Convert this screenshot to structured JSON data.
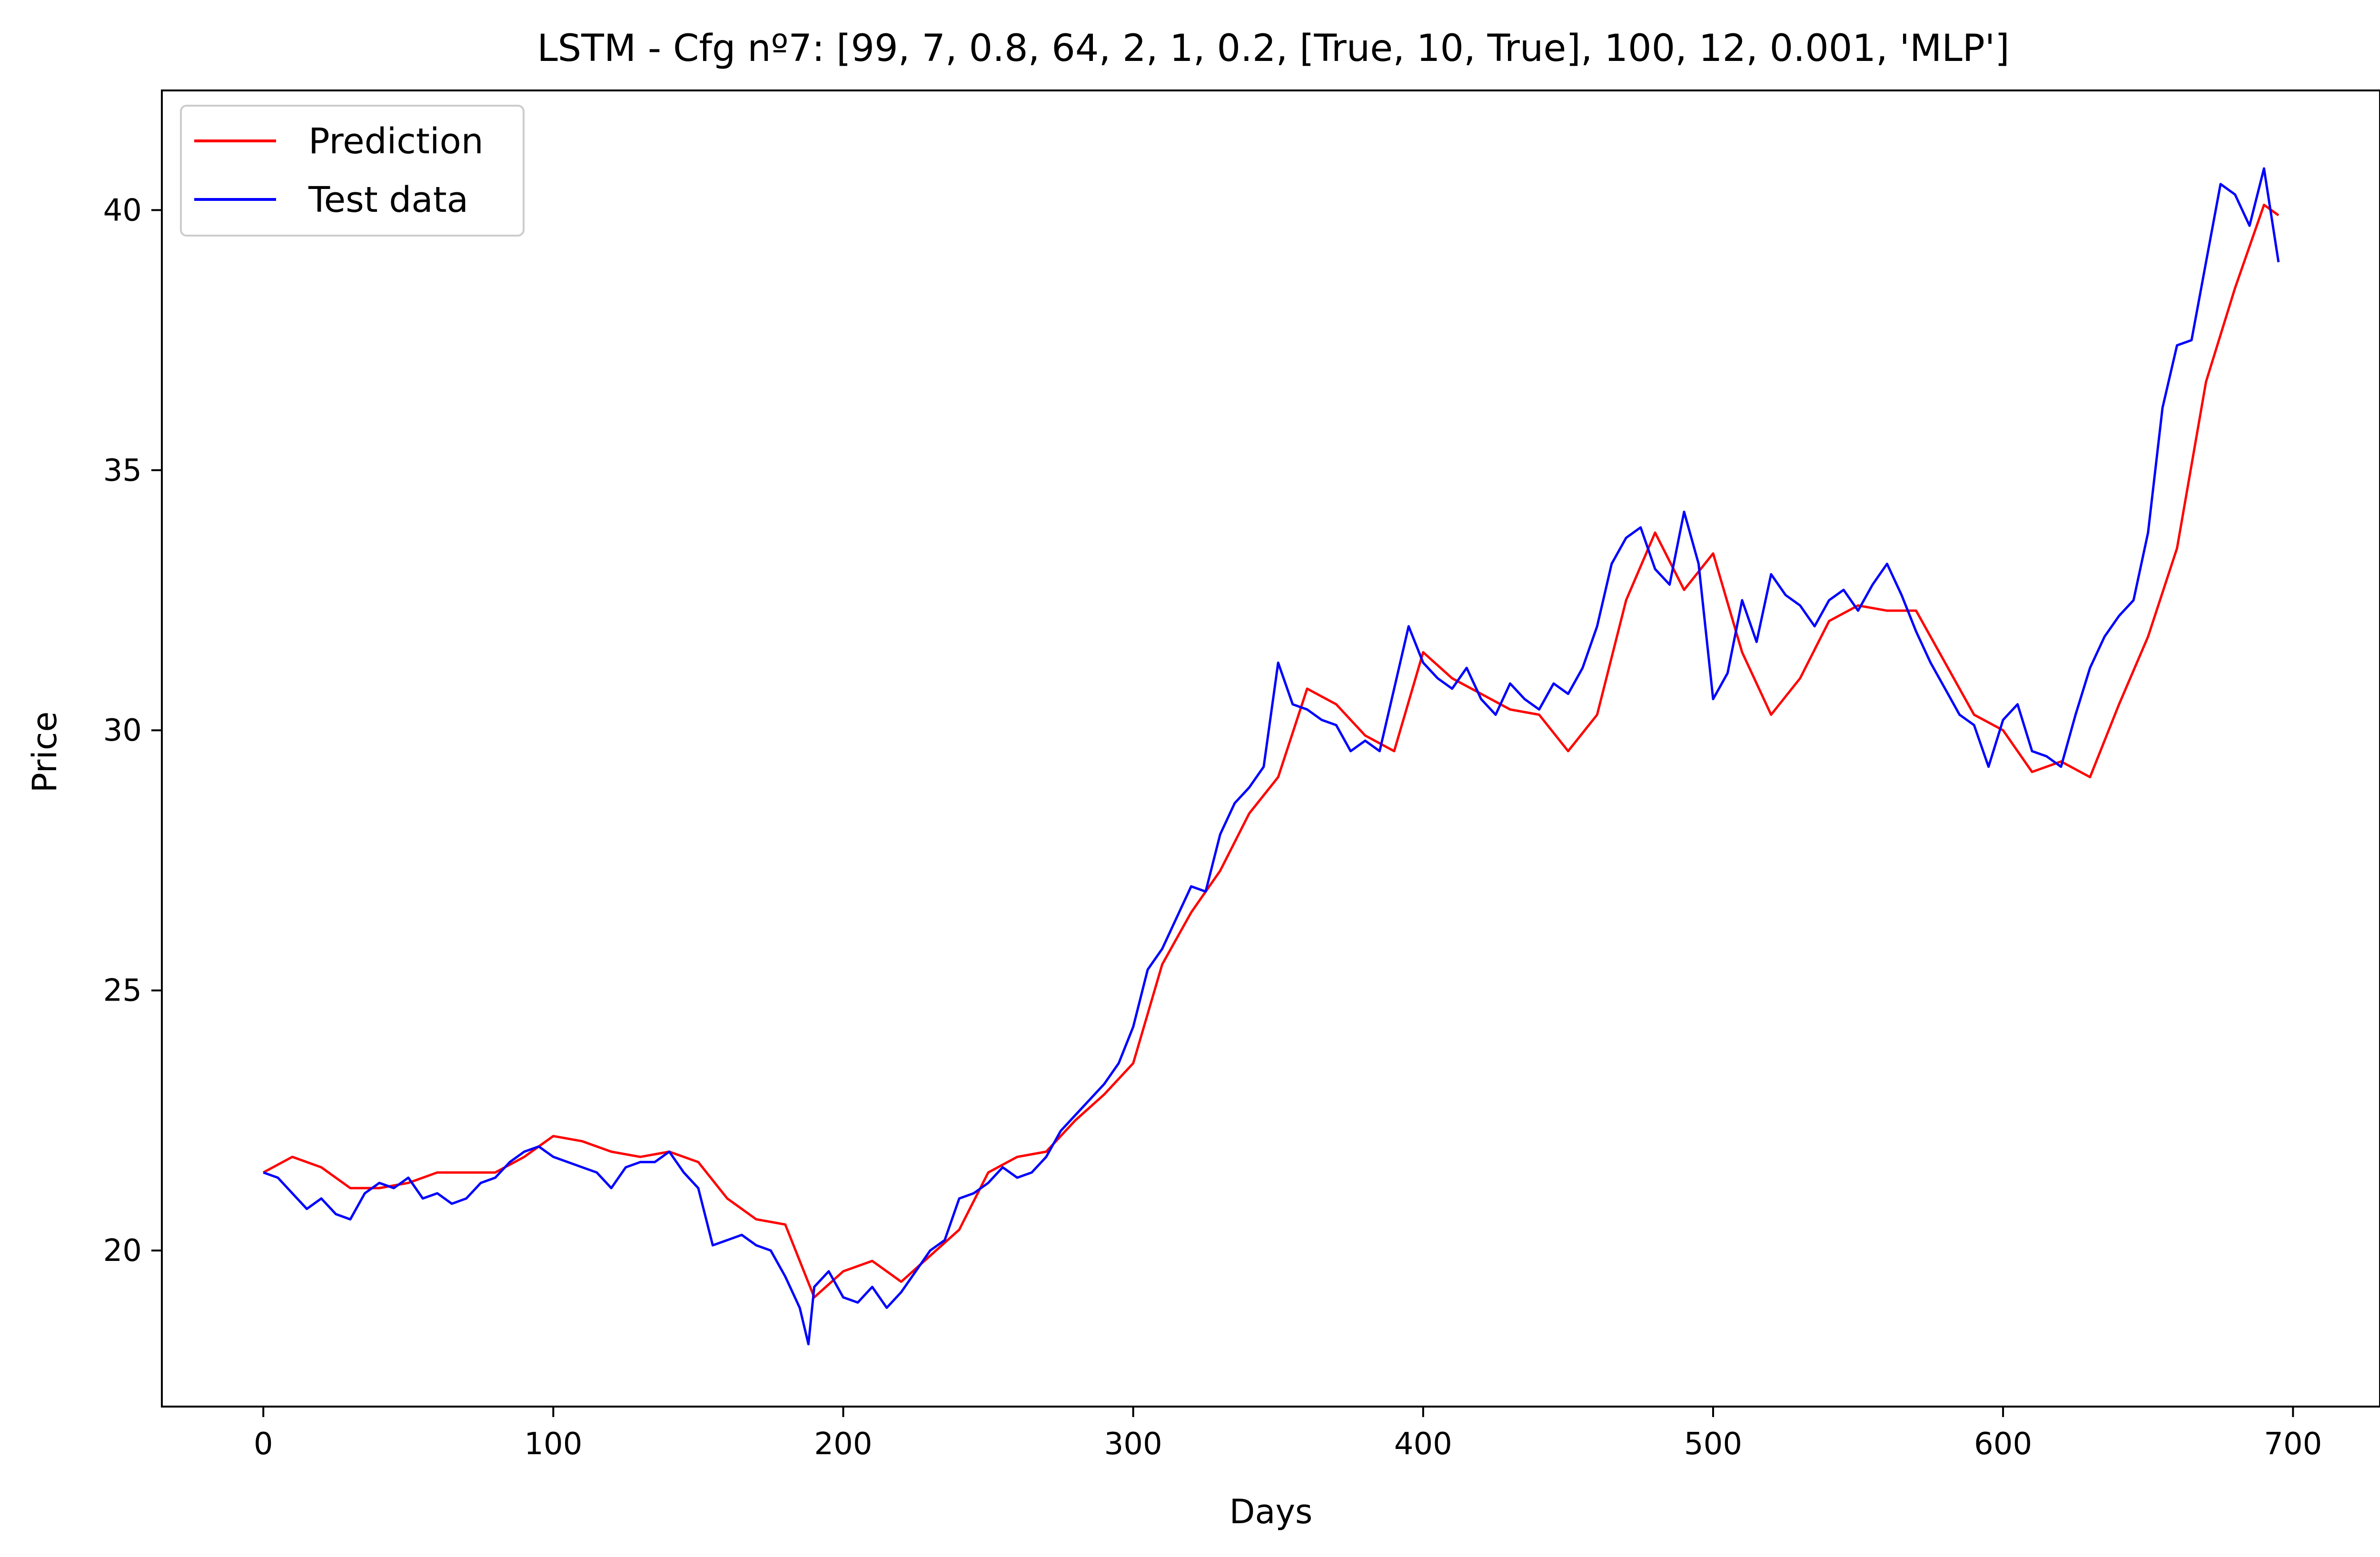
{
  "chart_data": {
    "type": "line",
    "title": "LSTM - Cfg nº7: [99, 7, 0.8, 64, 2, 1, 0.2, [True, 10, True], 100, 12, 0.001, 'MLP']",
    "xlabel": "Days",
    "ylabel": "Price",
    "xlim": [
      -35,
      730
    ],
    "ylim": [
      17,
      42.3
    ],
    "xticks": [
      0,
      100,
      200,
      300,
      400,
      500,
      600,
      700
    ],
    "yticks": [
      20,
      25,
      30,
      35,
      40
    ],
    "grid": false,
    "legend": "top-left",
    "series": [
      {
        "name": "Prediction",
        "color": "#ff0000",
        "x": [
          0,
          10,
          20,
          30,
          40,
          50,
          60,
          70,
          80,
          90,
          100,
          110,
          120,
          130,
          140,
          150,
          160,
          170,
          180,
          190,
          200,
          210,
          220,
          230,
          240,
          250,
          260,
          270,
          280,
          290,
          300,
          310,
          320,
          330,
          340,
          350,
          360,
          370,
          380,
          390,
          400,
          410,
          420,
          430,
          440,
          450,
          460,
          470,
          480,
          490,
          500,
          510,
          520,
          530,
          540,
          550,
          560,
          570,
          580,
          590,
          600,
          610,
          620,
          630,
          640,
          650,
          660,
          670,
          680,
          690,
          695
        ],
        "values": [
          21.5,
          21.8,
          21.6,
          21.2,
          21.2,
          21.3,
          21.5,
          21.5,
          21.5,
          21.8,
          22.2,
          22.1,
          21.9,
          21.8,
          21.9,
          21.7,
          21.0,
          20.6,
          20.5,
          19.1,
          19.6,
          19.8,
          19.4,
          19.9,
          20.4,
          21.5,
          21.8,
          21.9,
          22.5,
          23.0,
          23.6,
          25.5,
          26.5,
          27.3,
          28.4,
          29.1,
          30.8,
          30.5,
          29.9,
          29.6,
          31.5,
          31.0,
          30.7,
          30.4,
          30.3,
          29.6,
          30.3,
          32.5,
          33.8,
          32.7,
          33.4,
          31.5,
          30.3,
          31.0,
          32.1,
          32.4,
          32.3,
          32.3,
          31.3,
          30.3,
          30.0,
          29.2,
          29.4,
          29.1,
          30.5,
          31.8,
          33.5,
          36.7,
          38.5,
          40.1,
          39.9
        ]
      },
      {
        "name": "Test data",
        "color": "#0000ff",
        "x": [
          0,
          5,
          10,
          15,
          20,
          25,
          30,
          35,
          40,
          45,
          50,
          55,
          60,
          65,
          70,
          75,
          80,
          85,
          90,
          95,
          100,
          105,
          110,
          115,
          120,
          125,
          130,
          135,
          140,
          145,
          150,
          155,
          160,
          165,
          170,
          175,
          180,
          185,
          188,
          190,
          195,
          200,
          205,
          210,
          215,
          220,
          225,
          230,
          235,
          240,
          245,
          250,
          255,
          260,
          265,
          270,
          275,
          280,
          285,
          290,
          295,
          300,
          305,
          310,
          315,
          320,
          325,
          330,
          335,
          340,
          345,
          350,
          355,
          360,
          365,
          370,
          375,
          380,
          385,
          390,
          395,
          400,
          405,
          410,
          415,
          420,
          425,
          430,
          435,
          440,
          445,
          450,
          455,
          460,
          465,
          470,
          475,
          480,
          485,
          490,
          495,
          500,
          505,
          510,
          515,
          520,
          525,
          530,
          535,
          540,
          545,
          550,
          555,
          560,
          565,
          570,
          575,
          580,
          585,
          590,
          595,
          600,
          605,
          610,
          615,
          620,
          625,
          630,
          635,
          640,
          645,
          650,
          655,
          660,
          665,
          670,
          675,
          680,
          685,
          690,
          695
        ],
        "values": [
          21.5,
          21.4,
          21.1,
          20.8,
          21.0,
          20.7,
          20.6,
          21.1,
          21.3,
          21.2,
          21.4,
          21.0,
          21.1,
          20.9,
          21.0,
          21.3,
          21.4,
          21.7,
          21.9,
          22.0,
          21.8,
          21.7,
          21.6,
          21.5,
          21.2,
          21.6,
          21.7,
          21.7,
          21.9,
          21.5,
          21.2,
          20.1,
          20.2,
          20.3,
          20.1,
          20.0,
          19.5,
          18.9,
          18.2,
          19.3,
          19.6,
          19.1,
          19.0,
          19.3,
          18.9,
          19.2,
          19.6,
          20.0,
          20.2,
          21.0,
          21.1,
          21.3,
          21.6,
          21.4,
          21.5,
          21.8,
          22.3,
          22.6,
          22.9,
          23.2,
          23.6,
          24.3,
          25.4,
          25.8,
          26.4,
          27.0,
          26.9,
          28.0,
          28.6,
          28.9,
          29.3,
          31.3,
          30.5,
          30.4,
          30.2,
          30.1,
          29.6,
          29.8,
          29.6,
          30.8,
          32.0,
          31.3,
          31.0,
          30.8,
          31.2,
          30.6,
          30.3,
          30.9,
          30.6,
          30.4,
          30.9,
          30.7,
          31.2,
          32.0,
          33.2,
          33.7,
          33.9,
          33.1,
          32.8,
          34.2,
          33.2,
          30.6,
          31.1,
          32.5,
          31.7,
          33.0,
          32.6,
          32.4,
          32.0,
          32.5,
          32.7,
          32.3,
          32.8,
          33.2,
          32.6,
          31.9,
          31.3,
          30.8,
          30.3,
          30.1,
          29.3,
          30.2,
          30.5,
          29.6,
          29.5,
          29.3,
          30.3,
          31.2,
          31.8,
          32.2,
          32.5,
          33.8,
          36.2,
          37.4,
          37.5,
          39.0,
          40.5,
          40.3,
          39.7,
          40.8,
          39.0
        ]
      }
    ]
  }
}
